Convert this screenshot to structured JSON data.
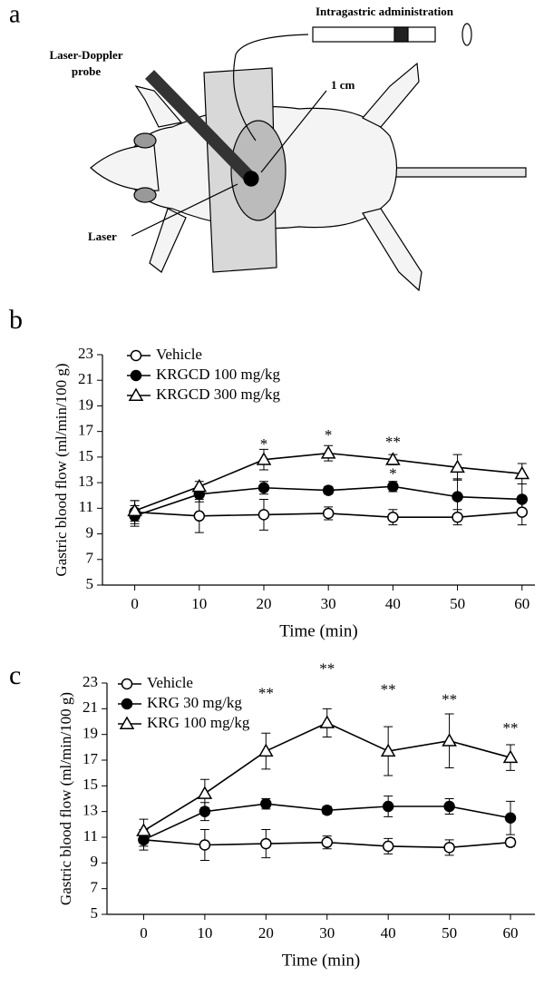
{
  "diagram": {
    "panel": "a",
    "intragastric": "Intragastric administration",
    "probe": [
      "Laser-Doppler",
      "probe"
    ],
    "one_cm": "1 cm",
    "laser": "Laser"
  },
  "chart_data": [
    {
      "type": "line",
      "panel": "b",
      "x_label": "Time (min)",
      "y_label": "Gastric blood flow (ml/min/100 g)",
      "x": [
        0,
        10,
        20,
        30,
        40,
        50,
        60
      ],
      "xlim": [
        -5,
        62
      ],
      "xticks": [
        0,
        10,
        20,
        30,
        40,
        50,
        60
      ],
      "ylim": [
        5,
        23
      ],
      "yticks": [
        5,
        7,
        9,
        11,
        13,
        15,
        17,
        19,
        21,
        23
      ],
      "grid": false,
      "legend": "upper left",
      "series": [
        {
          "name": "Vehicle",
          "color": "#000000",
          "marker": "circle-open",
          "values": [
            10.7,
            10.4,
            10.5,
            10.6,
            10.3,
            10.3,
            10.7
          ],
          "errors": [
            0.9,
            1.3,
            1.2,
            0.5,
            0.6,
            0.6,
            1.0
          ]
        },
        {
          "name": "KRGCD 100 mg/kg",
          "color": "#000000",
          "marker": "circle",
          "values": [
            10.4,
            12.1,
            12.6,
            12.4,
            12.7,
            11.9,
            11.7
          ],
          "errors": [
            0.8,
            0.6,
            0.5,
            0.3,
            0.4,
            1.4,
            1.2
          ]
        },
        {
          "name": "KRGCD 300 mg/kg",
          "color": "#000000",
          "marker": "triangle-open",
          "values": [
            10.8,
            12.7,
            14.8,
            15.3,
            14.8,
            14.2,
            13.7
          ],
          "errors": [
            0.8,
            0.4,
            0.8,
            0.6,
            0.4,
            1.0,
            0.8
          ]
        }
      ],
      "annotations": [
        {
          "text": "*",
          "x": 20,
          "y": 15.9
        },
        {
          "text": "*",
          "x": 30,
          "y": 16.6
        },
        {
          "text": "**",
          "x": 40,
          "y": 16.1
        },
        {
          "text": "*",
          "x": 40,
          "y": 13.6
        }
      ]
    },
    {
      "type": "line",
      "panel": "c",
      "x_label": "Time (min)",
      "y_label": "Gastric blood flow (ml/min/100 g)",
      "x": [
        0,
        10,
        20,
        30,
        40,
        50,
        60
      ],
      "xlim": [
        -6,
        64
      ],
      "xticks": [
        0,
        10,
        20,
        30,
        40,
        50,
        60
      ],
      "ylim": [
        5,
        23
      ],
      "yticks": [
        5,
        7,
        9,
        11,
        13,
        15,
        17,
        19,
        21,
        23
      ],
      "grid": false,
      "legend": "upper left",
      "series": [
        {
          "name": "Vehicle",
          "color": "#000000",
          "marker": "circle-open",
          "values": [
            10.8,
            10.4,
            10.5,
            10.6,
            10.3,
            10.2,
            10.6
          ],
          "errors": [
            0.8,
            1.2,
            1.1,
            0.5,
            0.6,
            0.6,
            0.3
          ]
        },
        {
          "name": "KRG 30 mg/kg",
          "color": "#000000",
          "marker": "circle",
          "values": [
            10.8,
            13.0,
            13.6,
            13.1,
            13.4,
            13.4,
            12.5
          ],
          "errors": [
            0.5,
            0.7,
            0.4,
            0.3,
            0.8,
            0.6,
            1.3
          ]
        },
        {
          "name": "KRG 100 mg/kg",
          "color": "#000000",
          "marker": "triangle-open",
          "values": [
            11.5,
            14.4,
            17.7,
            19.9,
            17.7,
            18.5,
            17.2
          ],
          "errors": [
            0.9,
            1.1,
            1.4,
            1.1,
            1.9,
            2.1,
            1.0
          ]
        }
      ],
      "annotations": [
        {
          "text": "**",
          "x": 20,
          "y": 22.1
        },
        {
          "text": "**",
          "x": 30,
          "y": 24.0
        },
        {
          "text": "**",
          "x": 40,
          "y": 22.4
        },
        {
          "text": "**",
          "x": 50,
          "y": 21.6
        },
        {
          "text": "**",
          "x": 60,
          "y": 19.4
        }
      ]
    }
  ]
}
